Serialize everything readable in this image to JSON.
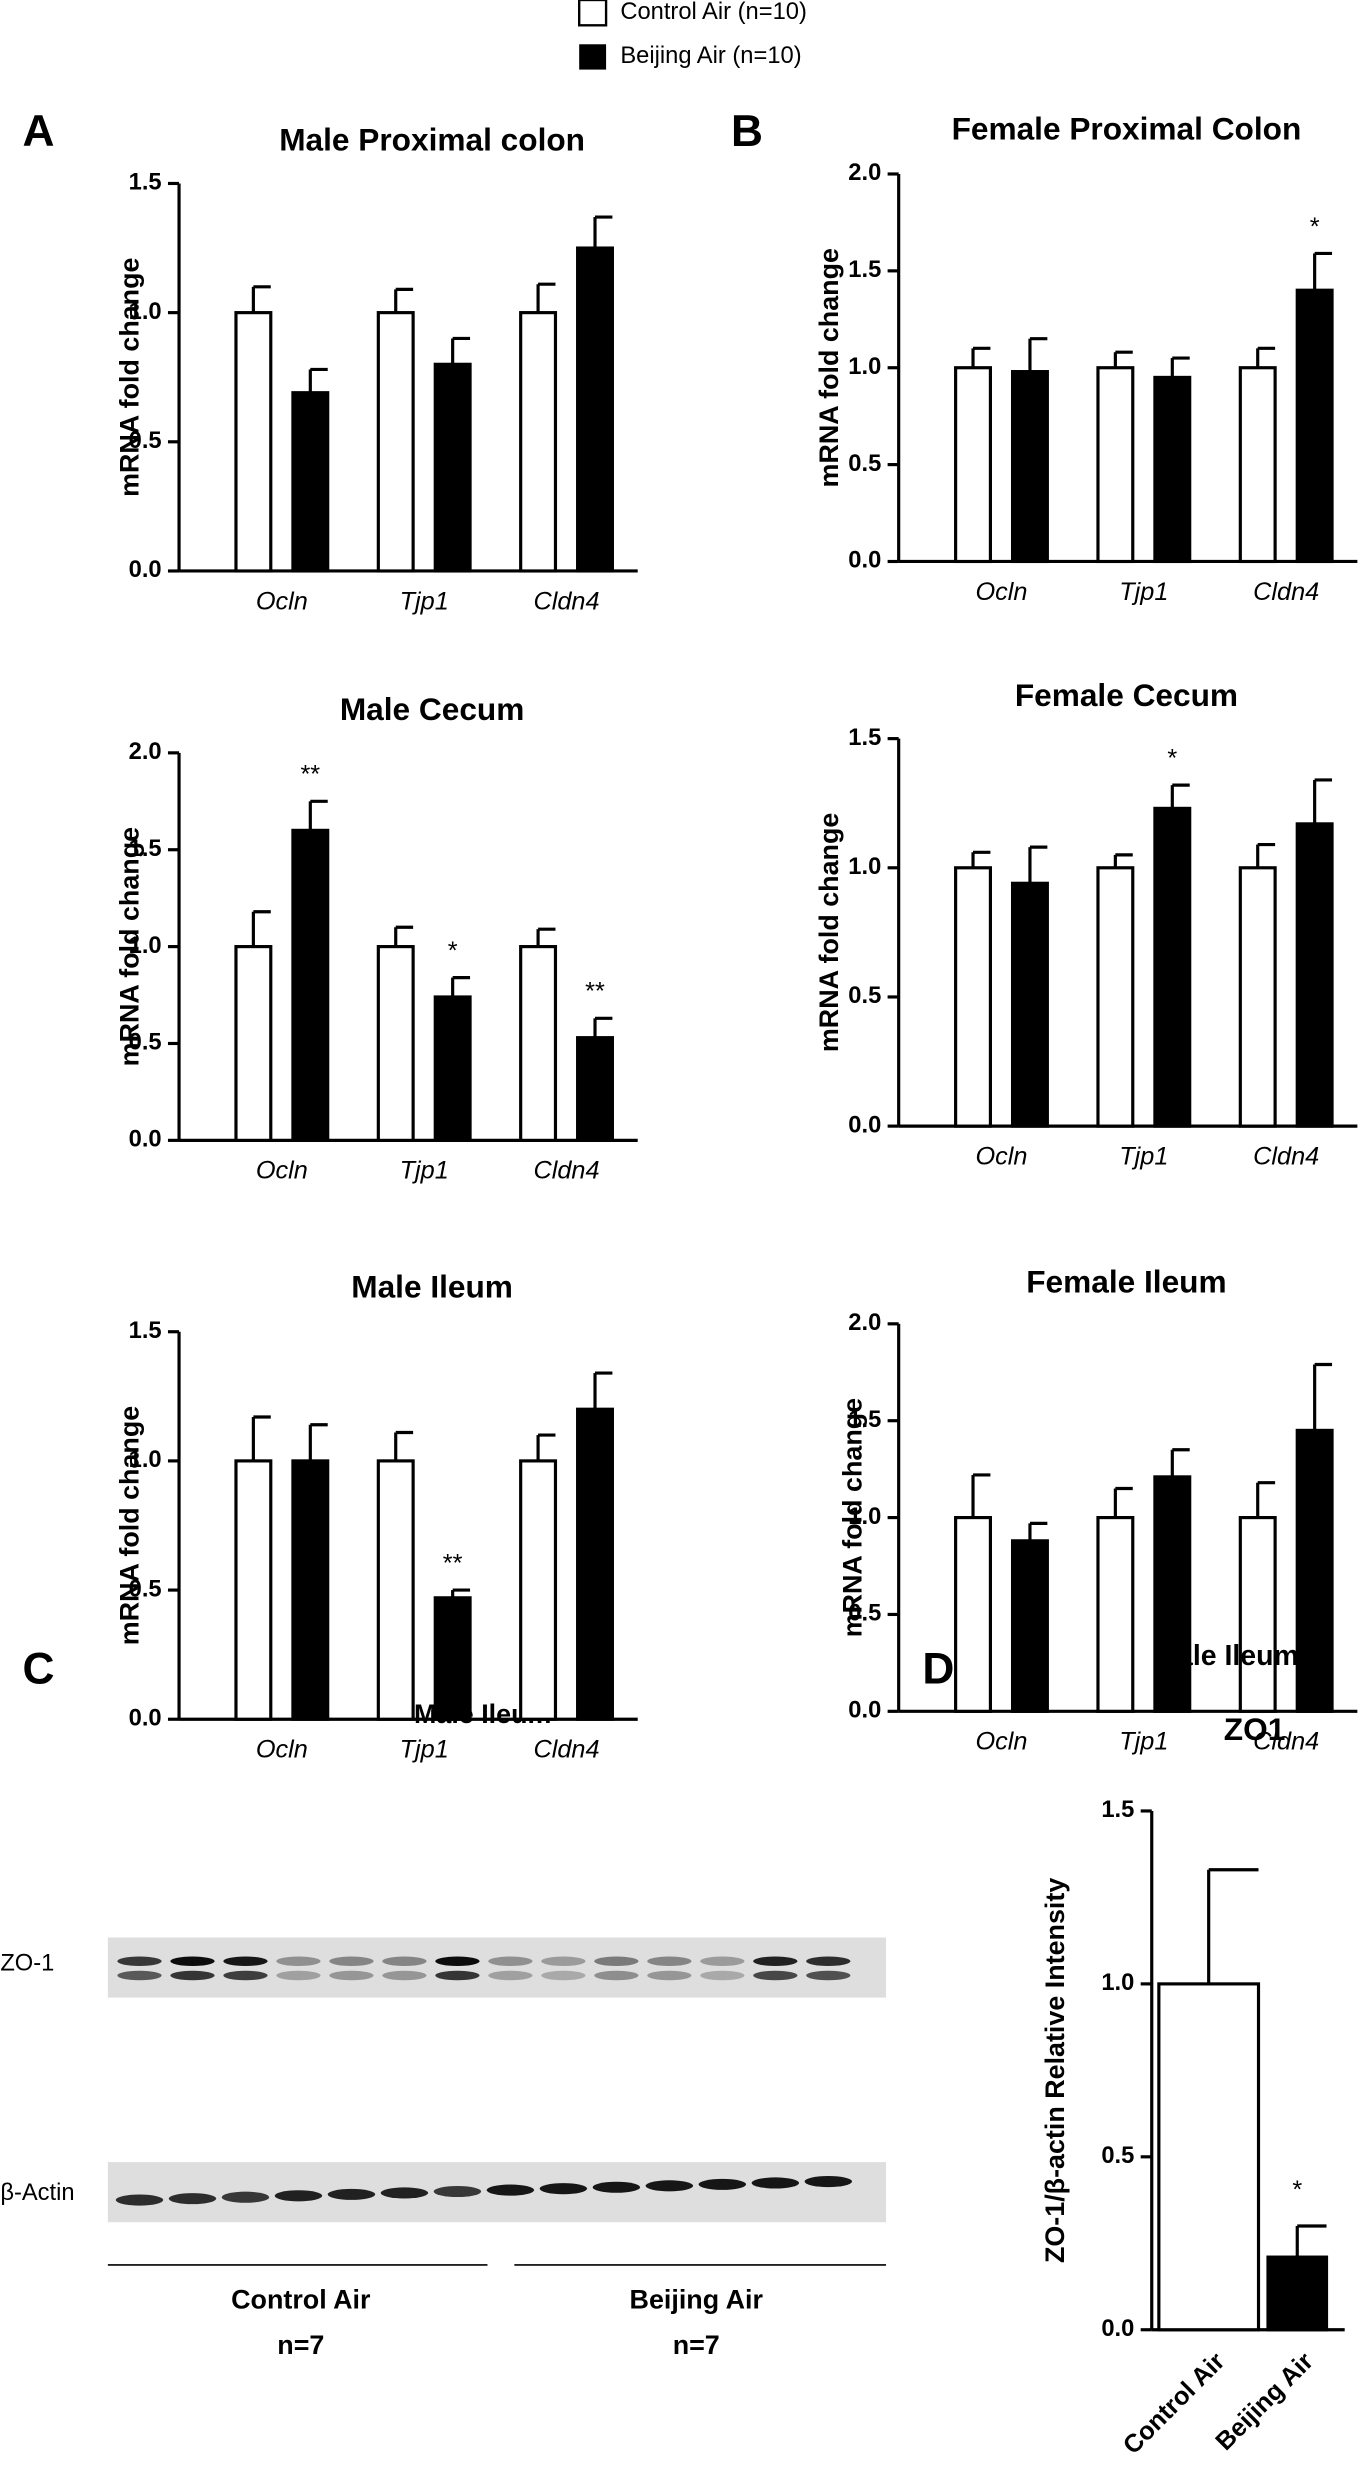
{
  "panels": [
    "A",
    "B",
    "C",
    "D"
  ],
  "blot": {
    "title": "Male Ileum",
    "rows": [
      "ZO-1",
      "β-Actin"
    ],
    "groups": [
      {
        "name": "Control Air",
        "n": "n=7"
      },
      {
        "name": "Beijing Air",
        "n": "n=7"
      }
    ]
  },
  "chart_data": [
    {
      "type": "bar",
      "title": "Male Proximal colon",
      "ylabel": "mRNA fold change",
      "categories": [
        "Ocln",
        "Tjp1",
        "Cldn4"
      ],
      "series": [
        {
          "name": "Control Air (n=10)",
          "color": "#ffffff",
          "values": [
            1,
            1,
            1
          ],
          "errors": [
            0.1,
            0.09,
            0.11
          ]
        },
        {
          "name": "Beijing Air (n=10)",
          "color": "#000000",
          "values": [
            0.69,
            0.8,
            1.25
          ],
          "errors": [
            0.09,
            0.1,
            0.12
          ]
        }
      ],
      "significance": [
        null,
        null,
        null
      ],
      "ylim": [
        0,
        1.5
      ],
      "yticks": [
        {
          "value": 0,
          "label": "0.0"
        },
        0.5,
        {
          "value": 1,
          "label": "1.0"
        },
        1.5
      ]
    },
    {
      "type": "bar",
      "title": "Male Cecum",
      "ylabel": "mRNA fold change",
      "categories": [
        "Ocln",
        "Tjp1",
        "Cldn4"
      ],
      "series": [
        {
          "color": "#ffffff",
          "values": [
            1,
            1,
            1
          ],
          "errors": [
            0.18,
            0.1,
            0.09
          ]
        },
        {
          "color": "#000000",
          "values": [
            1.6,
            0.74,
            0.53
          ],
          "errors": [
            0.15,
            0.1,
            0.1
          ]
        }
      ],
      "significance": [
        "**",
        "*",
        "**"
      ],
      "ylim": [
        0,
        2
      ],
      "yticks": [
        {
          "value": 0,
          "label": "0.0"
        },
        0.5,
        {
          "value": 1,
          "label": "1.0"
        },
        1.5,
        {
          "value": 2,
          "label": "2.0"
        }
      ]
    },
    {
      "type": "bar",
      "title": "Male Ileum",
      "ylabel": "mRNA fold change",
      "categories": [
        "Ocln",
        "Tjp1",
        "Cldn4"
      ],
      "series": [
        {
          "color": "#ffffff",
          "values": [
            1,
            1,
            1
          ],
          "errors": [
            0.17,
            0.11,
            0.1
          ]
        },
        {
          "color": "#000000",
          "values": [
            1.0,
            0.47,
            1.2
          ],
          "errors": [
            0.14,
            0.03,
            0.14
          ]
        }
      ],
      "significance": [
        null,
        "**",
        null
      ],
      "ylim": [
        0,
        1.5
      ],
      "yticks": [
        {
          "value": 0,
          "label": "0.0"
        },
        0.5,
        {
          "value": 1,
          "label": "1.0"
        },
        1.5
      ]
    },
    {
      "type": "bar",
      "title": "Female Proximal Colon",
      "ylabel": "mRNA fold change",
      "categories": [
        "Ocln",
        "Tjp1",
        "Cldn4"
      ],
      "series": [
        {
          "color": "#ffffff",
          "values": [
            1,
            1,
            1
          ],
          "errors": [
            0.1,
            0.08,
            0.1
          ]
        },
        {
          "color": "#000000",
          "values": [
            0.98,
            0.95,
            1.4
          ],
          "errors": [
            0.17,
            0.1,
            0.19
          ]
        }
      ],
      "significance": [
        null,
        null,
        "*"
      ],
      "ylim": [
        0,
        2
      ],
      "yticks": [
        {
          "value": 0,
          "label": "0.0"
        },
        0.5,
        {
          "value": 1,
          "label": "1.0"
        },
        1.5,
        {
          "value": 2,
          "label": "2.0"
        }
      ]
    },
    {
      "type": "bar",
      "title": "Female Cecum",
      "ylabel": "mRNA fold change",
      "categories": [
        "Ocln",
        "Tjp1",
        "Cldn4"
      ],
      "series": [
        {
          "color": "#ffffff",
          "values": [
            1,
            1,
            1
          ],
          "errors": [
            0.06,
            0.05,
            0.09
          ]
        },
        {
          "color": "#000000",
          "values": [
            0.94,
            1.23,
            1.17
          ],
          "errors": [
            0.14,
            0.09,
            0.17
          ]
        }
      ],
      "significance": [
        null,
        "*",
        null
      ],
      "ylim": [
        0,
        1.5
      ],
      "yticks": [
        {
          "value": 0,
          "label": "0.0"
        },
        0.5,
        {
          "value": 1,
          "label": "1.0"
        },
        1.5
      ]
    },
    {
      "type": "bar",
      "title": "Female Ileum",
      "ylabel": "mRNA fold change",
      "categories": [
        "Ocln",
        "Tjp1",
        "Cldn4"
      ],
      "series": [
        {
          "color": "#ffffff",
          "values": [
            1,
            1,
            1
          ],
          "errors": [
            0.22,
            0.15,
            0.18
          ]
        },
        {
          "color": "#000000",
          "values": [
            0.88,
            1.21,
            1.45
          ],
          "errors": [
            0.09,
            0.14,
            0.34
          ]
        }
      ],
      "significance": [
        null,
        null,
        null
      ],
      "ylim": [
        0,
        2
      ],
      "yticks": [
        {
          "value": 0,
          "label": "0.0"
        },
        0.5,
        {
          "value": 1,
          "label": "1.0"
        },
        1.5,
        {
          "value": 2,
          "label": "2.0"
        }
      ]
    },
    {
      "type": "bar",
      "subtitle": "Male Ileum",
      "title": "ZO1",
      "ylabel": "ZO-1/β-actin Relative Intensity",
      "categories": [
        "Control Air",
        "Beijing Air"
      ],
      "values": [
        1,
        0.21
      ],
      "errors": [
        0.33,
        0.09
      ],
      "colors": [
        "#ffffff",
        "#000000"
      ],
      "significance": [
        null,
        "*"
      ],
      "ylim": [
        0,
        1.5
      ],
      "yticks": [
        {
          "value": 0,
          "label": "0.0"
        },
        0.5,
        {
          "value": 1,
          "label": "1.0"
        },
        1.5
      ]
    }
  ]
}
